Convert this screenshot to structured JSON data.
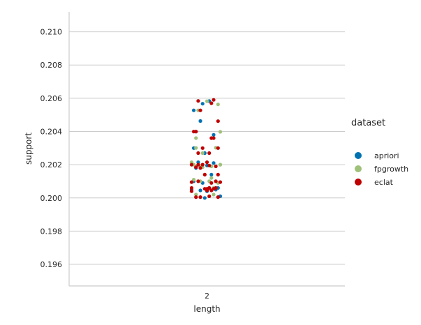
{
  "chart_data": {
    "type": "scatter",
    "subtype": "stripplot",
    "title": "",
    "xlabel": "length",
    "ylabel": "support",
    "categories": [
      "2"
    ],
    "ylim": [
      0.1947,
      0.2112
    ],
    "yticks": [
      "0.196",
      "0.198",
      "0.200",
      "0.202",
      "0.204",
      "0.206",
      "0.208",
      "0.210"
    ],
    "grid": "y",
    "legend": {
      "title": "dataset",
      "position": "right"
    },
    "series": [
      {
        "name": "apriori",
        "color": "#0072b2",
        "points": [
          {
            "dx": -0.06,
            "y": 0.20527
          },
          {
            "dx": -0.02,
            "y": 0.20567
          },
          {
            "dx": 0.01,
            "y": 0.20583
          },
          {
            "dx": -0.03,
            "y": 0.20463
          },
          {
            "dx": -0.05,
            "y": 0.20399
          },
          {
            "dx": -0.06,
            "y": 0.203
          },
          {
            "dx": -0.01,
            "y": 0.2027
          },
          {
            "dx": -0.04,
            "y": 0.20215
          },
          {
            "dx": 0.03,
            "y": 0.2021
          },
          {
            "dx": 0.0,
            "y": 0.20195
          },
          {
            "dx": -0.05,
            "y": 0.2018
          },
          {
            "dx": 0.02,
            "y": 0.2014
          },
          {
            "dx": -0.06,
            "y": 0.201
          },
          {
            "dx": -0.02,
            "y": 0.2009
          },
          {
            "dx": 0.01,
            "y": 0.2006
          },
          {
            "dx": 0.04,
            "y": 0.2005
          },
          {
            "dx": -0.07,
            "y": 0.2005
          },
          {
            "dx": -0.03,
            "y": 0.20045
          },
          {
            "dx": 0.0,
            "y": 0.2004
          },
          {
            "dx": 0.06,
            "y": 0.2001
          },
          {
            "dx": -0.01,
            "y": 0.2
          },
          {
            "dx": 0.05,
            "y": 0.2006
          },
          {
            "dx": 0.03,
            "y": 0.2038
          },
          {
            "dx": 0.0,
            "y": 0.2005
          }
        ]
      },
      {
        "name": "fpgrowth",
        "color": "#9fc17a",
        "points": [
          {
            "dx": 0.0,
            "y": 0.20582
          },
          {
            "dx": 0.05,
            "y": 0.20563
          },
          {
            "dx": -0.04,
            "y": 0.20527
          },
          {
            "dx": -0.05,
            "y": 0.20301
          },
          {
            "dx": 0.06,
            "y": 0.20398
          },
          {
            "dx": -0.05,
            "y": 0.2036
          },
          {
            "dx": 0.04,
            "y": 0.20302
          },
          {
            "dx": -0.02,
            "y": 0.2027
          },
          {
            "dx": -0.07,
            "y": 0.20215
          },
          {
            "dx": 0.06,
            "y": 0.202
          },
          {
            "dx": 0.02,
            "y": 0.2019
          },
          {
            "dx": -0.02,
            "y": 0.20185
          },
          {
            "dx": -0.01,
            "y": 0.2014
          },
          {
            "dx": -0.06,
            "y": 0.2011
          },
          {
            "dx": 0.05,
            "y": 0.2009
          },
          {
            "dx": -0.03,
            "y": 0.201
          },
          {
            "dx": 0.01,
            "y": 0.201
          },
          {
            "dx": 0.03,
            "y": 0.2006
          },
          {
            "dx": -0.05,
            "y": 0.2002
          },
          {
            "dx": 0.03,
            "y": 0.2002
          },
          {
            "dx": 0.02,
            "y": 0.2012
          },
          {
            "dx": -0.03,
            "y": 0.2019
          },
          {
            "dx": 0.06,
            "y": 0.202
          },
          {
            "dx": -0.06,
            "y": 0.202
          }
        ]
      },
      {
        "name": "eclat",
        "color": "#c00000",
        "points": [
          {
            "dx": -0.04,
            "y": 0.20584
          },
          {
            "dx": 0.03,
            "y": 0.2059
          },
          {
            "dx": 0.02,
            "y": 0.2057
          },
          {
            "dx": -0.03,
            "y": 0.20527
          },
          {
            "dx": 0.05,
            "y": 0.20462
          },
          {
            "dx": -0.06,
            "y": 0.20399
          },
          {
            "dx": -0.05,
            "y": 0.20399
          },
          {
            "dx": 0.02,
            "y": 0.2036
          },
          {
            "dx": 0.03,
            "y": 0.2036
          },
          {
            "dx": -0.02,
            "y": 0.203
          },
          {
            "dx": 0.05,
            "y": 0.203
          },
          {
            "dx": -0.04,
            "y": 0.2027
          },
          {
            "dx": 0.01,
            "y": 0.2027
          },
          {
            "dx": -0.07,
            "y": 0.202
          },
          {
            "dx": -0.04,
            "y": 0.202
          },
          {
            "dx": -0.02,
            "y": 0.202
          },
          {
            "dx": 0.0,
            "y": 0.20215
          },
          {
            "dx": 0.01,
            "y": 0.20195
          },
          {
            "dx": -0.05,
            "y": 0.20185
          },
          {
            "dx": -0.03,
            "y": 0.2018
          },
          {
            "dx": 0.04,
            "y": 0.2019
          },
          {
            "dx": -0.01,
            "y": 0.2014
          },
          {
            "dx": 0.05,
            "y": 0.2014
          },
          {
            "dx": -0.07,
            "y": 0.20095
          },
          {
            "dx": -0.04,
            "y": 0.201
          },
          {
            "dx": 0.02,
            "y": 0.2009
          },
          {
            "dx": 0.06,
            "y": 0.20095
          },
          {
            "dx": -0.07,
            "y": 0.2006
          },
          {
            "dx": 0.0,
            "y": 0.20055
          },
          {
            "dx": 0.03,
            "y": 0.20055
          },
          {
            "dx": -0.01,
            "y": 0.20055
          },
          {
            "dx": 0.01,
            "y": 0.2006
          },
          {
            "dx": 0.04,
            "y": 0.2006
          },
          {
            "dx": -0.07,
            "y": 0.2004
          },
          {
            "dx": 0.02,
            "y": 0.20045
          },
          {
            "dx": -0.03,
            "y": 0.20005
          },
          {
            "dx": 0.01,
            "y": 0.2001
          },
          {
            "dx": 0.05,
            "y": 0.20005
          },
          {
            "dx": -0.05,
            "y": 0.20005
          },
          {
            "dx": 0.0,
            "y": 0.20045
          },
          {
            "dx": 0.04,
            "y": 0.201
          }
        ]
      }
    ]
  }
}
